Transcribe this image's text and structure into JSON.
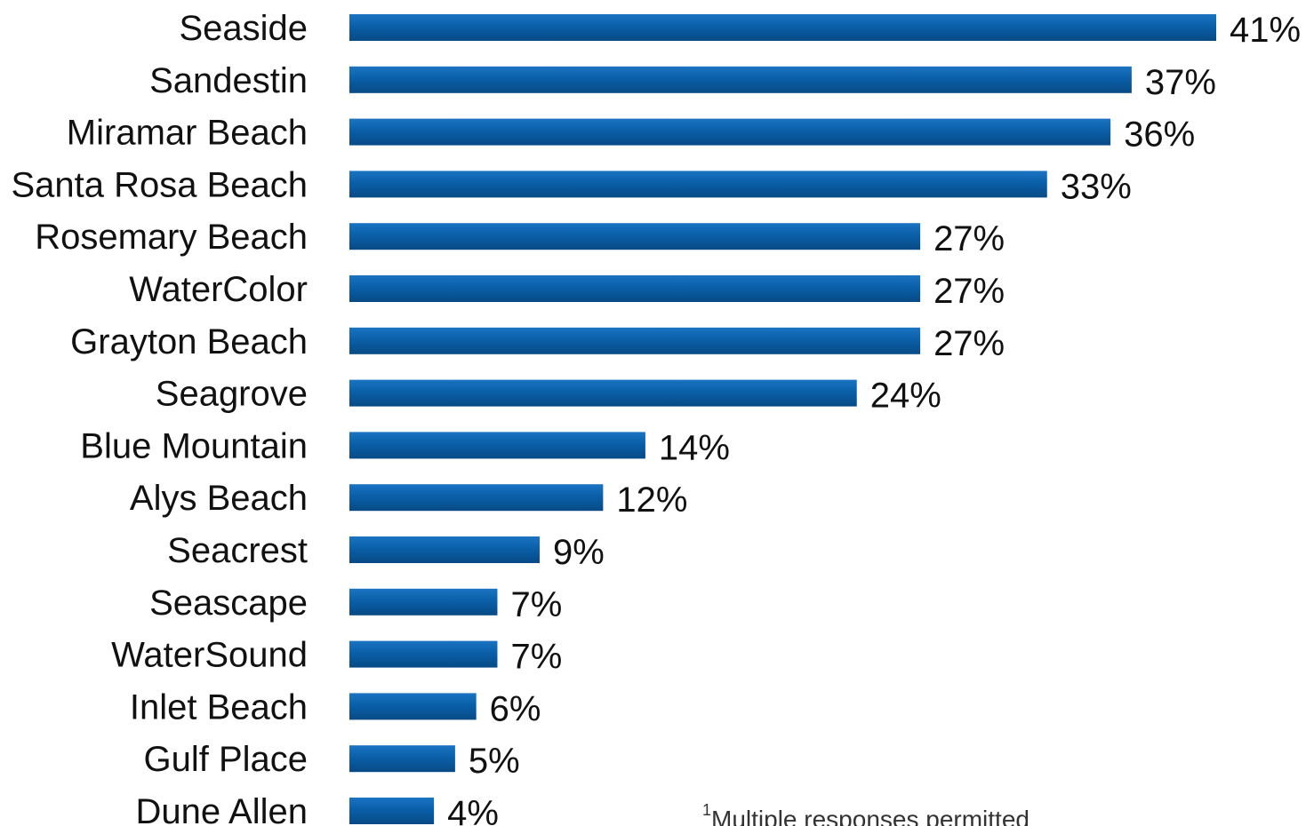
{
  "chart_data": {
    "type": "bar",
    "orientation": "horizontal",
    "categories": [
      "Seaside",
      "Sandestin",
      "Miramar Beach",
      "Santa Rosa Beach",
      "Rosemary Beach",
      "WaterColor",
      "Grayton Beach",
      "Seagrove",
      "Blue Mountain",
      "Alys Beach",
      "Seacrest",
      "Seascape",
      "WaterSound",
      "Inlet Beach",
      "Gulf Place",
      "Dune Allen"
    ],
    "values": [
      41,
      37,
      36,
      33,
      27,
      27,
      27,
      24,
      14,
      12,
      9,
      7,
      7,
      6,
      5,
      4
    ],
    "value_labels": [
      "41%",
      "37%",
      "36%",
      "33%",
      "27%",
      "27%",
      "27%",
      "24%",
      "14%",
      "12%",
      "9%",
      "7%",
      "7%",
      "6%",
      "5%",
      "4%"
    ],
    "unit": "%",
    "xlim": [
      0,
      41
    ],
    "grid": false,
    "legend": "none",
    "bar_color": "#0a5fa8"
  },
  "footnote": {
    "marker": "1",
    "text": "Multiple responses permitted"
  },
  "colors": {
    "bar": "#0a5fa8",
    "bar_highlight": "#1b74c2",
    "bar_shadow": "#074a85",
    "text": "#111111"
  }
}
